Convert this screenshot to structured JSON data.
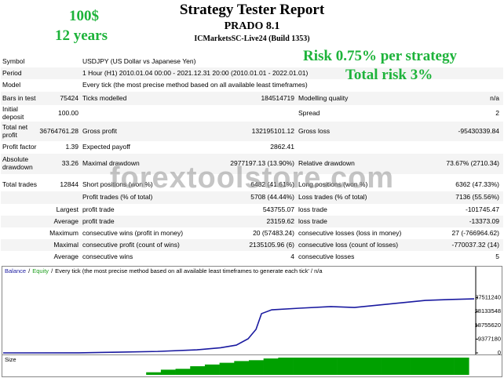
{
  "header": {
    "title": "Strategy Tester Report",
    "subtitle": "PRADO 8.1",
    "server": "ICMarketsSC-Live24 (Build 1353)"
  },
  "overlay": {
    "deposit": "100$",
    "duration": "12 years",
    "risk": "Risk 0.75% per strategy",
    "total_risk": "Total risk 3%",
    "watermark": "forextoolstore.com"
  },
  "table": {
    "rows": [
      [
        "Symbol",
        "USDJPY (US Dollar vs Japanese Yen)"
      ],
      [
        "Period",
        "1 Hour (H1) 2010.01.04 00:00 - 2021.12.31 20:00 (2010.01.01 - 2022.01.01)"
      ],
      [
        "Model",
        "Every tick (the most precise method based on all available least timeframes)"
      ],
      [
        "Bars in test",
        "75424",
        "Ticks modelled",
        "184514719",
        "Modelling quality",
        "n/a"
      ],
      [
        "Initial deposit",
        "100.00",
        null,
        null,
        "Spread",
        "2"
      ],
      [
        "Total net profit",
        "36764761.28",
        "Gross profit",
        "132195101.12",
        "Gross loss",
        "-95430339.84"
      ],
      [
        "Profit factor",
        "1.39",
        "Expected payoff",
        "2862.41",
        null,
        null
      ],
      [
        "Absolute drawdown",
        "33.26",
        "Maximal drawdown",
        "2977197.13 (13.90%)",
        "Relative drawdown",
        "73.67% (2710.34)"
      ],
      [
        "Total trades",
        "12844",
        "Short positions (won %)",
        "6482 (41.61%)",
        "Long positions (won %)",
        "6362 (47.33%)"
      ],
      [
        null,
        null,
        "Profit trades (% of total)",
        "5708 (44.44%)",
        "Loss trades (% of total)",
        "7136 (55.56%)"
      ],
      [
        null,
        "Largest",
        "profit trade",
        "543755.07",
        "loss trade",
        "-101745.47"
      ],
      [
        null,
        "Average",
        "profit trade",
        "23159.62",
        "loss trade",
        "-13373.09"
      ],
      [
        null,
        "Maximum",
        "consecutive wins (profit in money)",
        "20 (57483.24)",
        "consecutive losses (loss in money)",
        "27 (-766964.62)"
      ],
      [
        null,
        "Maximal",
        "consecutive profit (count of wins)",
        "2135105.96 (6)",
        "consecutive loss (count of losses)",
        "-770037.32 (14)"
      ],
      [
        null,
        "Average",
        "consecutive wins",
        "4",
        "consecutive losses",
        "5"
      ]
    ]
  },
  "chart_data": {
    "type": "line",
    "series": [
      {
        "name": "Balance",
        "color": "#1a1aa0",
        "x": [
          0,
          2062,
          3136,
          4210,
          5284,
          5928,
          6358,
          6680,
          6895,
          7045,
          7324,
          8076,
          8935,
          9579,
          10224,
          10868,
          11512,
          12157,
          12844
        ],
        "values": [
          100,
          50000,
          500000,
          1000000,
          2100000,
          3500000,
          5300000,
          9600000,
          16000000,
          26700000,
          29300000,
          30400000,
          31500000,
          30900000,
          32500000,
          34100000,
          35700000,
          36300000,
          36764861
        ]
      },
      {
        "name": "Equity",
        "color": "#20a020"
      }
    ],
    "separator": "/",
    "note": "Every tick (the most precise method based on all available least timeframes to generate each tick' / n/a",
    "xlim": [
      0,
      12844
    ],
    "ylim": [
      0,
      56000000
    ],
    "yticks": [
      0,
      9377180,
      18755620,
      28133548,
      37511240
    ],
    "size": {
      "label": "Size",
      "color": "#00a000",
      "ylim": [
        0,
        1
      ],
      "x": [
        3900,
        4300,
        4700,
        5100,
        5500,
        5900,
        6300,
        6700,
        7100,
        7500,
        7900,
        8300,
        8700,
        9100,
        9500,
        9900,
        10300,
        10700,
        11100,
        11500,
        11900,
        12300
      ],
      "values": [
        0.15,
        0.3,
        0.35,
        0.5,
        0.6,
        0.7,
        0.8,
        0.85,
        0.95,
        1,
        1,
        1,
        1,
        1,
        1,
        1,
        1,
        1,
        1,
        1,
        1,
        1
      ]
    }
  }
}
